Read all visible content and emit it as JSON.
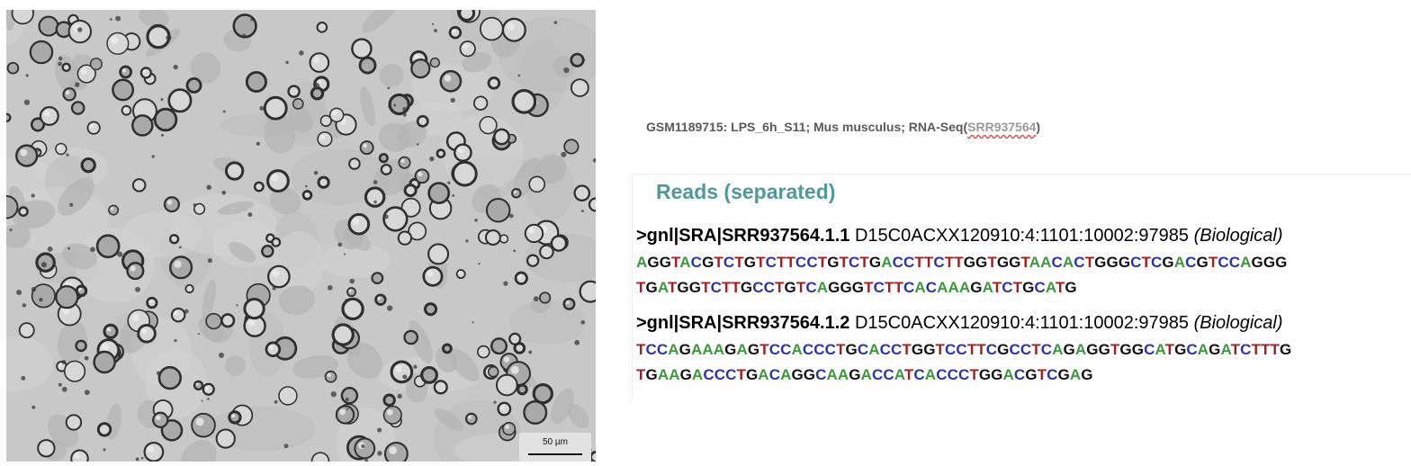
{
  "micrograph": {
    "scale_bar_label": "50 µm"
  },
  "sample_title": {
    "text": "GSM1189715: LPS_6h_S11; Mus musculus; RNA-Seq",
    "open_paren": "(",
    "accession": "SRR937564",
    "close_paren": ")"
  },
  "reads": {
    "heading": "Reads (separated)",
    "items": [
      {
        "id": ">gnl|SRA|SRR937564.1.1",
        "spot": "D15C0ACXX120910:4:1101:10002:97985",
        "note": "(Biological)",
        "seq_line1": "AGGTACGTCTGTCTTCCTGTCTGACCTTCTTGGTGGTAACACTGGGCTCGACGTCCAGGG",
        "seq_line2": "TGATGGTCTTGCCTGTCAGGGTCTTCACAAAGATCTGCATG"
      },
      {
        "id": ">gnl|SRA|SRR937564.1.2",
        "spot": "D15C0ACXX120910:4:1101:10002:97985",
        "note": "(Biological)",
        "seq_line1": "TCCAGAAAGAGTCCACCCTGCACCTGGTCCTTCGCCTCAGAGGTGGCATGCAGATCTTTG",
        "seq_line2": "TGAAGACCCTGACAGGCAAGACCATCACCCTGGACGTCGAG"
      }
    ]
  },
  "colors": {
    "heading": "#4f9a98",
    "base_A": "#3a9a3a",
    "base_C": "#2a34a8",
    "base_G": "#111111",
    "base_T": "#a31e1e"
  }
}
